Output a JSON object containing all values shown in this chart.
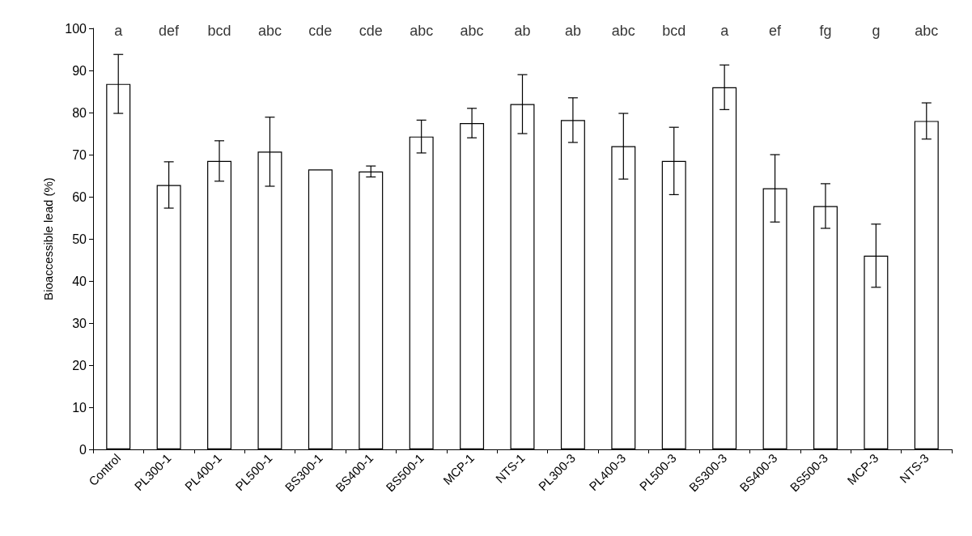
{
  "chart_data": {
    "type": "bar",
    "ylabel": "Bioaccessible lead (%)",
    "categories": [
      "Control",
      "PL300-1",
      "PL400-1",
      "PL500-1",
      "BS300-1",
      "BS400-1",
      "BS500-1",
      "MCP-1",
      "NTS-1",
      "PL300-3",
      "PL400-3",
      "PL500-3",
      "BS300-3",
      "BS400-3",
      "BS500-3",
      "MCP-3",
      "NTS-3"
    ],
    "values": [
      86.8,
      62.8,
      68.5,
      70.7,
      66.5,
      66,
      74.3,
      77.5,
      82,
      78.2,
      72,
      68.5,
      86,
      62,
      57.8,
      46,
      78
    ],
    "errors": [
      7,
      5.5,
      4.8,
      8.2,
      null,
      1.3,
      3.9,
      3.5,
      7,
      5.3,
      7.8,
      8,
      5.3,
      8,
      5.3,
      7.5,
      4.3
    ],
    "color": "#ffffff",
    "ylim": [
      0,
      100
    ],
    "yticks": [
      0,
      10,
      20,
      30,
      40,
      50,
      60,
      70,
      80,
      90,
      100
    ],
    "grid": false,
    "annotations": [
      "a",
      "def",
      "bcd",
      "abc",
      "cde",
      "cde",
      "abc",
      "abc",
      "ab",
      "ab",
      "abc",
      "bcd",
      "a",
      "ef",
      "fg",
      "g",
      "abc"
    ]
  }
}
